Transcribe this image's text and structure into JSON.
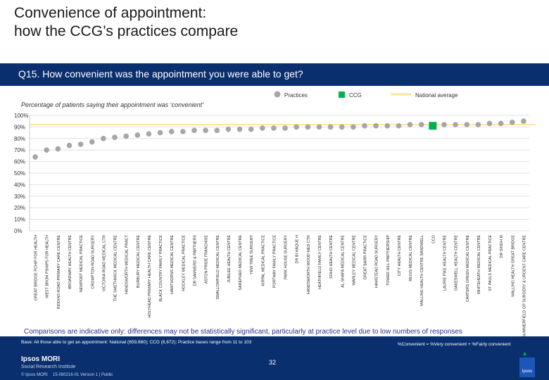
{
  "header": {
    "title_line1": "Convenience of appointment:",
    "title_line2": "how the CCG’s practices compare"
  },
  "question": "Q15. How convenient was the appointment you were able to get?",
  "legend": {
    "practices": "Practices",
    "ccg": "CCG",
    "national": "National average"
  },
  "subtitle": "Percentage of patients saying their appointment was ‘convenient’",
  "colors": {
    "practice": "#a6a6a6",
    "ccg": "#00b050",
    "national": "#ffe699",
    "navy": "#0a2f6e",
    "accent_text": "#2a2f8f"
  },
  "chart_data": {
    "type": "scatter",
    "title": "Percentage of patients saying their appointment was ‘convenient’",
    "xlabel": "",
    "ylabel": "",
    "ylim": [
      0,
      100
    ],
    "yticks": [
      "0%",
      "10%",
      "20%",
      "30%",
      "40%",
      "50%",
      "60%",
      "70%",
      "80%",
      "90%",
      "100%"
    ],
    "national_average": 92,
    "categories": [
      "GREAT BRIDGE PCHIP FOR HEALTH",
      "WEST BROM PSHIPS FOR HEALTH",
      "RIDDINS ROAD PRIMARY CARE CENTRE",
      "BROADWAY HEALTH CENTRE",
      "NEWPORT MEDICAL PRACTICE",
      "CROMPTON ROAD SURGERY",
      "VICTORIA ROAD MEDICAL CTR",
      "THE SMETHWICK MEDICAL CENTRE",
      "HANDSWORTH MEDICAL PRACT",
      "BURBURY MEDICAL CENTRE",
      "HOLYHEAD PRIMARY HEALTH CARE CENTRE",
      "BLACK COUNTRY FAMILY PRACTICE",
      "HAWTHORNS MEDICAL CENTRE",
      "HOCKLEY MEDICAL PRACTICE",
      "DR SAMMERD & PARTNERS",
      "ASTON PRIDE FRANCHISE",
      "SWALLOWFIELD MEDICAL CENTRE",
      "JUBILEE HEALTH CENTRE",
      "SAREPHED MEDICAL CENTRE",
      "YEW TREE SURGERY",
      "KIRPAL MEDICAL PRACTICE",
      "PORTWAY FAMILY PRACTICE",
      "PARK HOUSE SURGERY",
      "DR BI HAQUE H",
      "HANDSWORTH WOOD MED CTR",
      "HEATHFIELD FAMILY CENTRE",
      "SOHO HEALTH CENTRE",
      "AL-SHAFA MEDICAL CENTRE",
      "WARLEY MEDICAL CENTRE",
      "GREAT BARR PRACTICE",
      "HAMSTEAD ROAD SURGERY",
      "TOWER HILL PARTNERSHIP",
      "CITY HEALTH CENTRE",
      "REGIS MEDICAL CENTRE",
      "MALLING HEALTH CENTRE SANDWELL",
      "CCG",
      "LAURIE PIKE HEALTH CENTRE",
      "OAKESWELL HEALTH CENTRE",
      "CARTERS GREEN MEDICAL CENTRE",
      "WHITEHEATH MEDICAL CENTRE",
      "ST PAULS MEDICAL PRACTICE",
      "DR SINGH M",
      "MALLING HEALTH GREAT BRIDGE",
      "SUMMERFIELD GP SURGERY & URGENT CARE CENTRE"
    ],
    "values": [
      64,
      70,
      71,
      74,
      75,
      77,
      80,
      81,
      82,
      83,
      84,
      85,
      86,
      86,
      87,
      87,
      87,
      88,
      88,
      88,
      89,
      89,
      89,
      90,
      90,
      90,
      90,
      90,
      90,
      91,
      91,
      91,
      91,
      92,
      92,
      91,
      92,
      92,
      92,
      92,
      93,
      93,
      94,
      95
    ],
    "ccg_index": 35
  },
  "footer": {
    "comparison": "Comparisons are indicative only: differences may not be statistically significant, particularly at practice level due to low numbers of responses",
    "base": "Base: All those able to get an appointment: National (659,980); CCG (6,672); Practice bases range from 11 to 103",
    "definition": "%Convenient = %Very convenient + %Fairly convenient",
    "page_number": "32",
    "brand": "Ipsos MORI",
    "brand_sub": "Social Research Institute",
    "legal": "© Ipsos MORI",
    "version": "15-080216-01 Version 1 | Public",
    "logo_text": "Ipsos"
  }
}
